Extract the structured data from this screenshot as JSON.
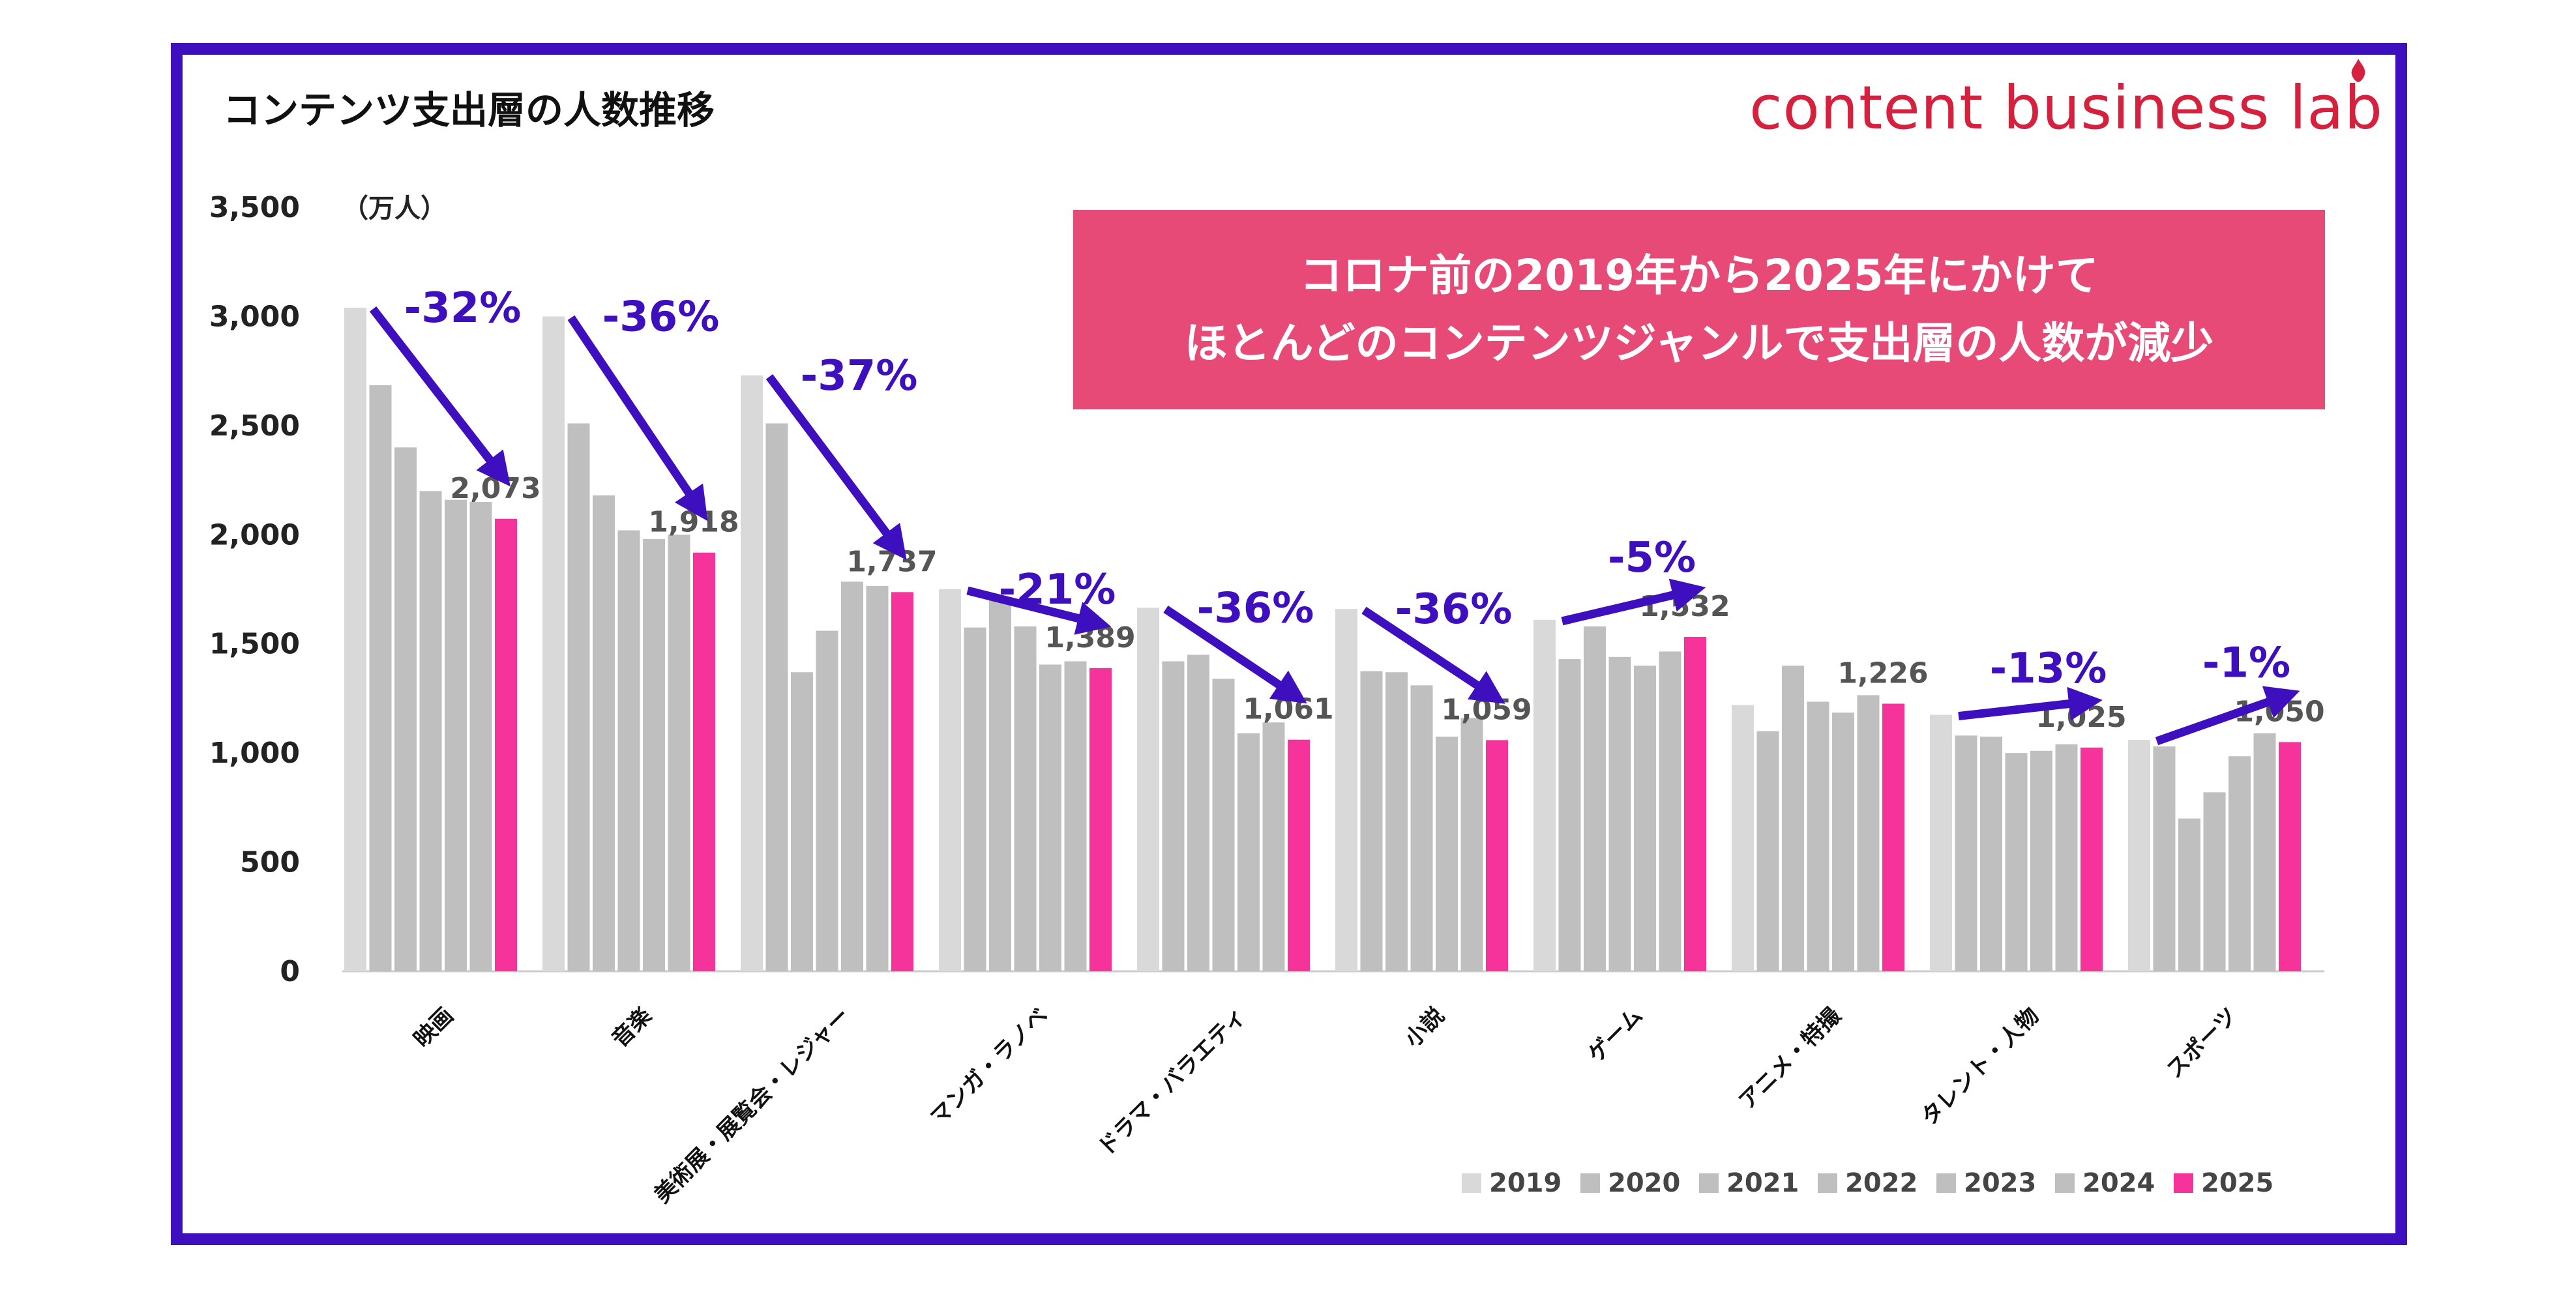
{
  "title": "コンテンツ支出層の人数推移",
  "brand": "content business lab",
  "callout": {
    "line1": "コロナ前の2019年から2025年にかけて",
    "line2": "ほとんどのコンテンツジャンルで支出層の人数が減少"
  },
  "colors": {
    "frame": "#3d0fbf",
    "callout_bg": "#e84a77",
    "brand": "#d6213e",
    "arrow": "#3d0fbf",
    "y2019": "#d9d9d9",
    "y_mid": "#bfbfbf",
    "y2025": "#f5339a"
  },
  "chart_data": {
    "type": "bar",
    "title": "コンテンツ支出層の人数推移",
    "ylabel": "（万人）",
    "ylim": [
      0,
      3500
    ],
    "yticks": [
      0,
      500,
      1000,
      1500,
      2000,
      2500,
      3000,
      3500
    ],
    "ytick_labels": [
      "0",
      "500",
      "1,000",
      "1,500",
      "2,000",
      "2,500",
      "3,000",
      "3,500"
    ],
    "legend_position": "bottom-right",
    "categories": [
      "映画",
      "音楽",
      "美術展・展覧会・レジャー",
      "マンガ・ラノベ",
      "ドラマ・バラエティ",
      "小説",
      "ゲーム",
      "アニメ・特撮",
      "タレント・人物",
      "スポーツ"
    ],
    "series": [
      {
        "name": "2019",
        "values": [
          3040,
          3000,
          2730,
          1750,
          1665,
          1660,
          1610,
          1220,
          1175,
          1060
        ]
      },
      {
        "name": "2020",
        "values": [
          2685,
          2510,
          2510,
          1575,
          1420,
          1375,
          1430,
          1100,
          1080,
          1030
        ]
      },
      {
        "name": "2021",
        "values": [
          2400,
          2180,
          1370,
          1710,
          1450,
          1370,
          1580,
          1400,
          1075,
          700
        ]
      },
      {
        "name": "2022",
        "values": [
          2200,
          2020,
          1560,
          1580,
          1340,
          1310,
          1440,
          1235,
          1000,
          820
        ]
      },
      {
        "name": "2023",
        "values": [
          2160,
          1980,
          1785,
          1405,
          1090,
          1075,
          1400,
          1185,
          1010,
          985
        ]
      },
      {
        "name": "2024",
        "values": [
          2150,
          2000,
          1765,
          1420,
          1140,
          1160,
          1465,
          1265,
          1040,
          1090
        ]
      },
      {
        "name": "2025",
        "values": [
          2073,
          1918,
          1737,
          1389,
          1061,
          1059,
          1532,
          1226,
          1025,
          1050
        ]
      }
    ],
    "value_labels": [
      "2,073",
      "1,918",
      "1,737",
      "1,389",
      "1,061",
      "1,059",
      "1,532",
      "1,226",
      "1,025",
      "1,050"
    ],
    "change_labels": [
      "-32%",
      "-36%",
      "-37%",
      "-21%",
      "-36%",
      "-36%",
      "-5%",
      "",
      "-13%",
      "-1%"
    ]
  }
}
